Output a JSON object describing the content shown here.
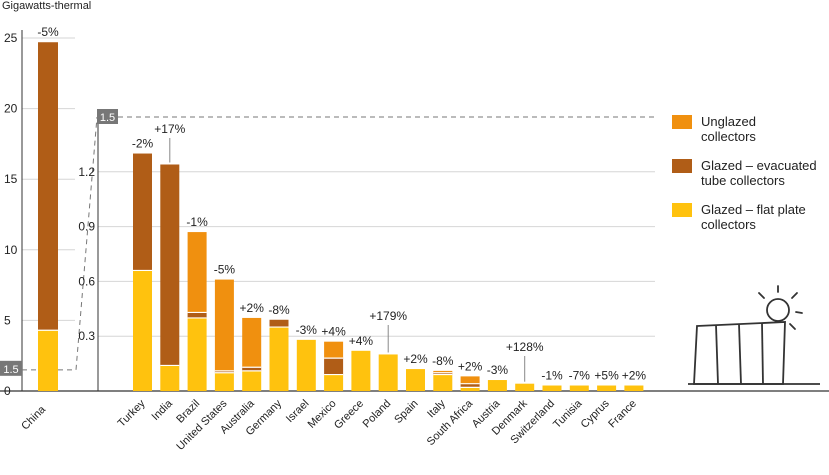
{
  "colors": {
    "unglazed": "#F0900F",
    "evacuated": "#B05D17",
    "flat": "#FFC20E",
    "axis": "#333333",
    "grid": "#d6d6d6",
    "zoom_box": "#777777",
    "icon": "#333333"
  },
  "chart_data": {
    "type": "bar",
    "stacked": true,
    "ylabel": "Gigawatts-thermal",
    "legend": {
      "placement": "right",
      "items": [
        {
          "key": "unglazed",
          "label_lines": [
            "Unglazed",
            "collectors"
          ]
        },
        {
          "key": "evacuated",
          "label_lines": [
            "Glazed – evacuated",
            "tube collectors"
          ]
        },
        {
          "key": "flat",
          "label_lines": [
            "Glazed – flat plate",
            "collectors"
          ]
        }
      ]
    },
    "main_panel": {
      "ylim": [
        0,
        25
      ],
      "yticks": [
        "0",
        "5",
        "10",
        "15",
        "20",
        "25"
      ],
      "zoom_marker": "1.5",
      "bars": [
        {
          "category": "China",
          "flat": 4.3,
          "evacuated": 20.4,
          "unglazed": 0.0,
          "change": "-5%"
        }
      ]
    },
    "inset_panel": {
      "ylim": [
        0,
        1.5
      ],
      "yticks": [
        "0.3",
        "0.6",
        "0.9",
        "1.2"
      ],
      "top_label": "1.5",
      "grid": true,
      "bars": [
        {
          "category": "Turkey",
          "flat": 0.66,
          "evacuated": 0.64,
          "unglazed": 0.0,
          "change": "-2%"
        },
        {
          "category": "India",
          "flat": 0.14,
          "evacuated": 1.1,
          "unglazed": 0.0,
          "change": "+17%"
        },
        {
          "category": "Brazil",
          "flat": 0.4,
          "evacuated": 0.03,
          "unglazed": 0.44,
          "change": "-1%"
        },
        {
          "category": "United States",
          "flat": 0.1,
          "evacuated": 0.01,
          "unglazed": 0.5,
          "change": "-5%"
        },
        {
          "category": "Australia",
          "flat": 0.11,
          "evacuated": 0.02,
          "unglazed": 0.27,
          "change": "+2%"
        },
        {
          "category": "Germany",
          "flat": 0.35,
          "evacuated": 0.04,
          "unglazed": 0.0,
          "change": "-8%"
        },
        {
          "category": "Israel",
          "flat": 0.28,
          "evacuated": 0.0,
          "unglazed": 0.0,
          "change": "-3%"
        },
        {
          "category": "Mexico",
          "flat": 0.09,
          "evacuated": 0.09,
          "unglazed": 0.09,
          "change": "+4%"
        },
        {
          "category": "Greece",
          "flat": 0.22,
          "evacuated": 0.0,
          "unglazed": 0.0,
          "change": "+4%"
        },
        {
          "category": "Poland",
          "flat": 0.2,
          "evacuated": 0.0,
          "unglazed": 0.0,
          "change": "+179%"
        },
        {
          "category": "Spain",
          "flat": 0.12,
          "evacuated": 0.0,
          "unglazed": 0.0,
          "change": "+2%"
        },
        {
          "category": "Italy",
          "flat": 0.09,
          "evacuated": 0.01,
          "unglazed": 0.01,
          "change": "-8%"
        },
        {
          "category": "South Africa",
          "flat": 0.02,
          "evacuated": 0.02,
          "unglazed": 0.04,
          "change": "+2%"
        },
        {
          "category": "Austria",
          "flat": 0.06,
          "evacuated": 0.0,
          "unglazed": 0.0,
          "change": "-3%"
        },
        {
          "category": "Denmark",
          "flat": 0.04,
          "evacuated": 0.0,
          "unglazed": 0.0,
          "change": "+128%"
        },
        {
          "category": "Switzerland",
          "flat": 0.03,
          "evacuated": 0.0,
          "unglazed": 0.0,
          "change": "-1%"
        },
        {
          "category": "Tunisia",
          "flat": 0.03,
          "evacuated": 0.0,
          "unglazed": 0.0,
          "change": "-7%"
        },
        {
          "category": "Cyprus",
          "flat": 0.03,
          "evacuated": 0.0,
          "unglazed": 0.0,
          "change": "+5%"
        },
        {
          "category": "France",
          "flat": 0.03,
          "evacuated": 0.0,
          "unglazed": 0.0,
          "change": "+2%"
        }
      ]
    }
  },
  "icon": {
    "name": "solar-collector-icon"
  }
}
